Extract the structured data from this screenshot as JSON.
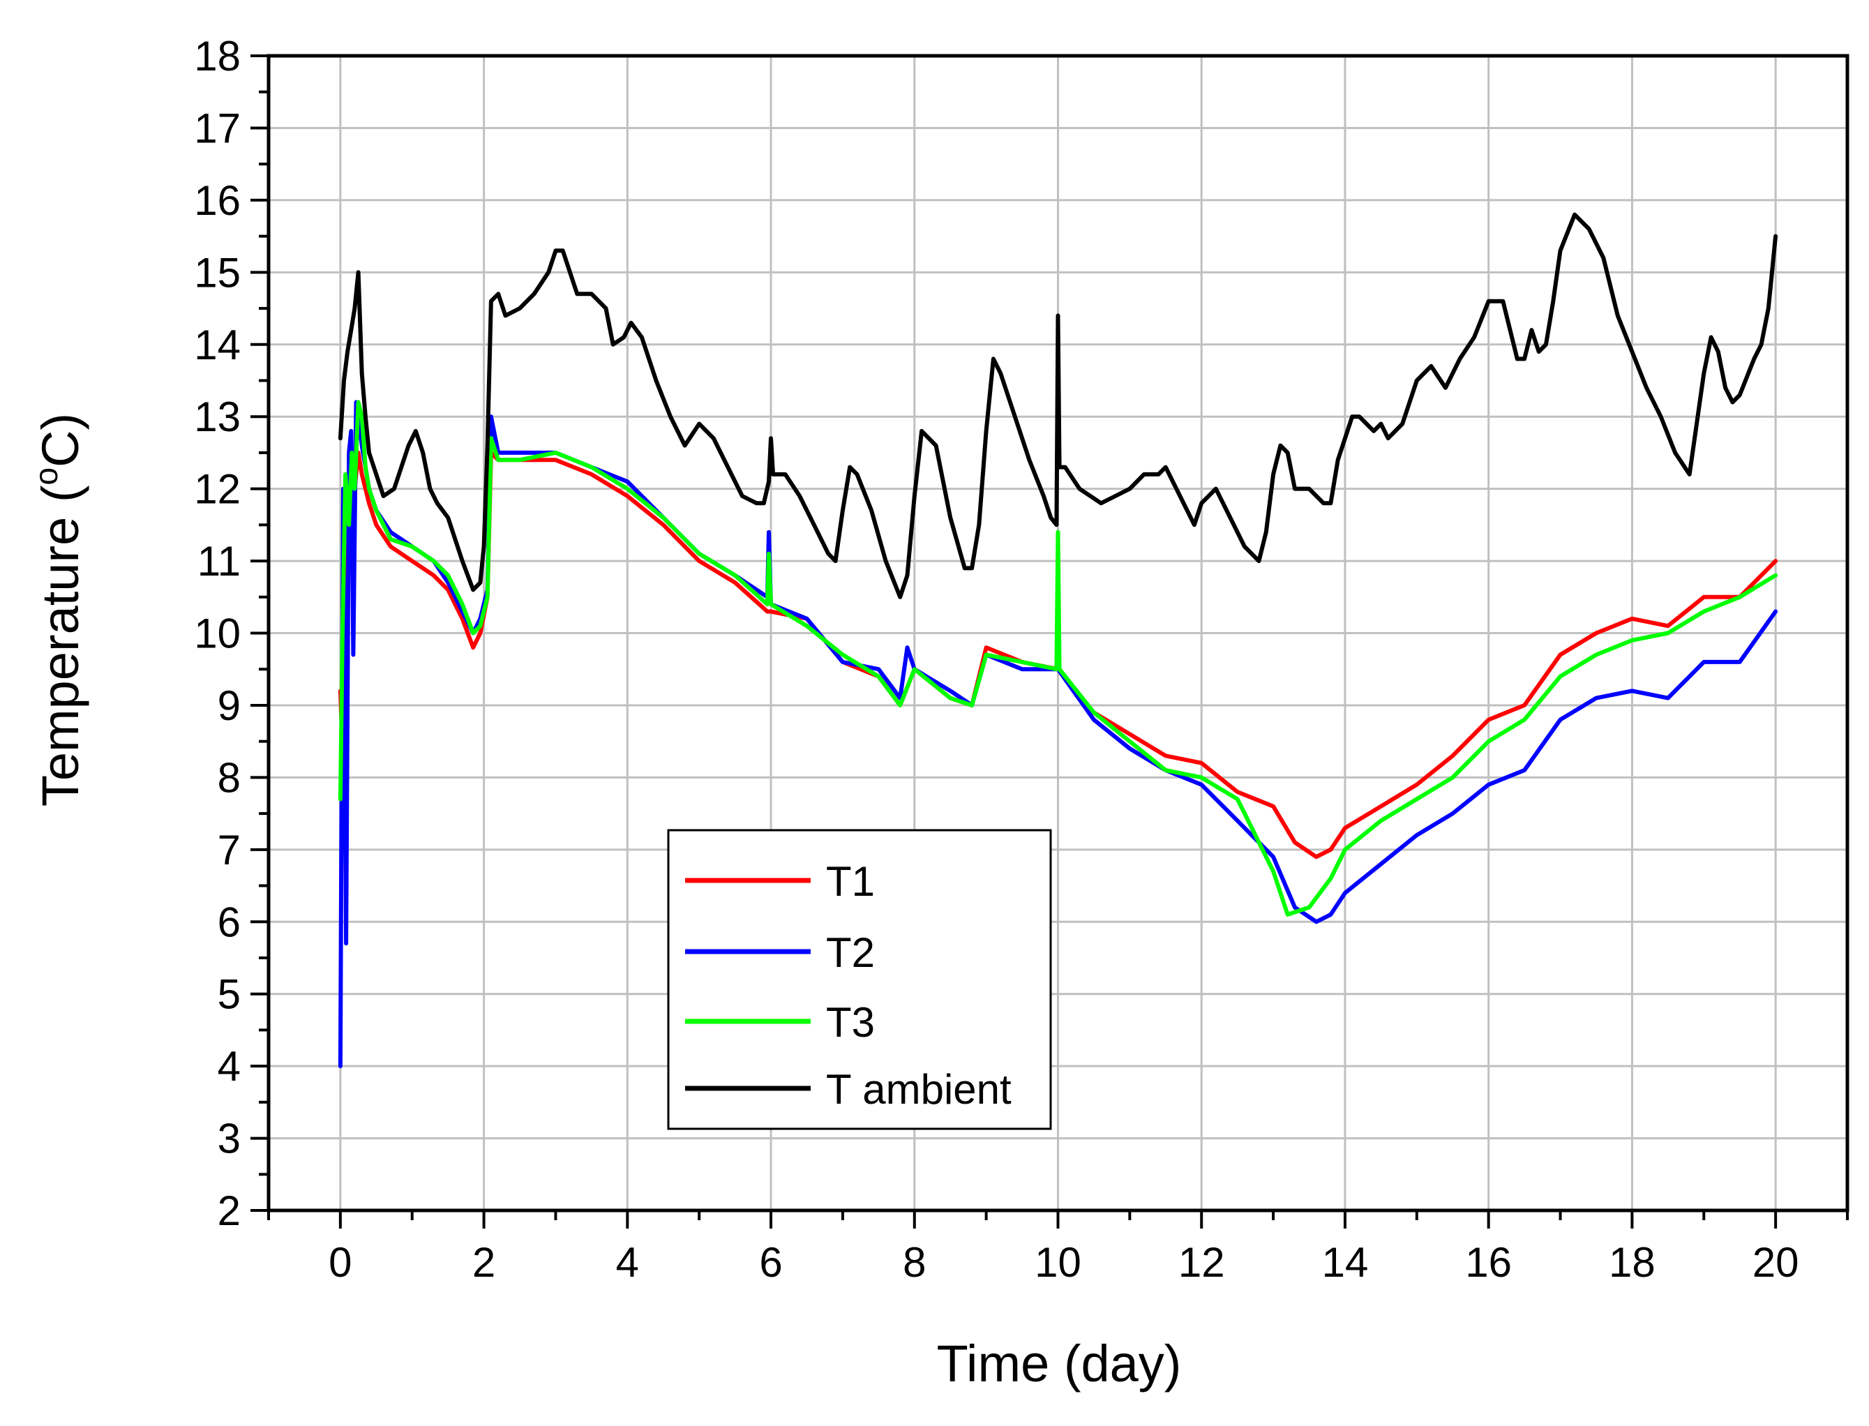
{
  "chart_data": {
    "type": "line",
    "title": "",
    "xlabel": "Time (day)",
    "ylabel_main": "Temperature (",
    "ylabel_sup": "o",
    "ylabel_end": "C)",
    "xlim": [
      -1,
      21
    ],
    "ylim": [
      2,
      18
    ],
    "xticks": [
      0,
      2,
      4,
      6,
      8,
      10,
      12,
      14,
      16,
      18,
      20
    ],
    "xtick_labels": [
      "0",
      "2",
      "4",
      "6",
      "8",
      "10",
      "12",
      "14",
      "16",
      "18",
      "20"
    ],
    "yticks": [
      2,
      3,
      4,
      5,
      6,
      7,
      8,
      9,
      10,
      11,
      12,
      13,
      14,
      15,
      16,
      17,
      18
    ],
    "ytick_labels": [
      "2",
      "3",
      "4",
      "5",
      "6",
      "7",
      "8",
      "9",
      "10",
      "11",
      "12",
      "13",
      "14",
      "15",
      "16",
      "17",
      "18"
    ],
    "grid": true,
    "legend_position": "lower-center",
    "series": [
      {
        "name": "T1",
        "color": "#ff0000",
        "x": [
          0,
          0.05,
          0.1,
          0.15,
          0.2,
          0.25,
          0.3,
          0.4,
          0.5,
          0.7,
          1.0,
          1.3,
          1.5,
          1.7,
          1.85,
          1.95,
          2.05,
          2.1,
          2.2,
          2.5,
          3.0,
          3.5,
          4.0,
          4.5,
          5.0,
          5.5,
          5.95,
          6.0,
          6.5,
          7.0,
          7.5,
          7.8,
          8.0,
          8.5,
          8.8,
          9.0,
          9.5,
          10.0,
          10.5,
          11.0,
          11.5,
          12.0,
          12.5,
          13.0,
          13.3,
          13.6,
          13.8,
          14.0,
          14.5,
          15.0,
          15.5,
          16.0,
          16.5,
          17.0,
          17.5,
          18.0,
          18.5,
          19.0,
          19.5,
          20.0
        ],
        "y": [
          9.2,
          7.8,
          11.0,
          12.2,
          12.0,
          12.5,
          12.2,
          11.8,
          11.5,
          11.2,
          11.0,
          10.8,
          10.6,
          10.2,
          9.8,
          10.0,
          10.5,
          12.5,
          12.4,
          12.4,
          12.4,
          12.2,
          11.9,
          11.5,
          11.0,
          10.7,
          10.3,
          10.3,
          10.2,
          9.6,
          9.4,
          9.0,
          9.5,
          9.1,
          9.0,
          9.8,
          9.6,
          9.5,
          8.9,
          8.6,
          8.3,
          8.2,
          7.8,
          7.6,
          7.1,
          6.9,
          7.0,
          7.3,
          7.6,
          7.9,
          8.3,
          8.8,
          9.0,
          9.7,
          10.0,
          10.2,
          10.1,
          10.5,
          10.5,
          11.0
        ]
      },
      {
        "name": "T2",
        "color": "#0000ff",
        "x": [
          0,
          0.02,
          0.04,
          0.08,
          0.12,
          0.15,
          0.18,
          0.22,
          0.25,
          0.3,
          0.4,
          0.5,
          0.7,
          1.0,
          1.3,
          1.5,
          1.7,
          1.85,
          1.95,
          2.05,
          2.1,
          2.2,
          2.5,
          3.0,
          3.5,
          4.0,
          4.5,
          5.0,
          5.5,
          5.95,
          5.97,
          6.0,
          6.5,
          7.0,
          7.5,
          7.8,
          7.9,
          8.0,
          8.5,
          8.8,
          9.0,
          9.5,
          10.0,
          10.5,
          11.0,
          11.5,
          12.0,
          12.5,
          13.0,
          13.3,
          13.6,
          13.8,
          14.0,
          14.5,
          15.0,
          15.5,
          16.0,
          16.5,
          17.0,
          17.5,
          18.0,
          18.5,
          19.0,
          19.5,
          20.0
        ],
        "y": [
          4.0,
          8.5,
          12.0,
          5.7,
          12.5,
          12.8,
          9.7,
          13.2,
          13.0,
          12.6,
          12.0,
          11.7,
          11.4,
          11.2,
          11.0,
          10.7,
          10.3,
          10.0,
          10.2,
          10.6,
          13.0,
          12.5,
          12.5,
          12.5,
          12.3,
          12.1,
          11.6,
          11.1,
          10.8,
          10.5,
          11.4,
          10.4,
          10.2,
          9.6,
          9.5,
          9.1,
          9.8,
          9.5,
          9.2,
          9.0,
          9.7,
          9.5,
          9.5,
          8.8,
          8.4,
          8.1,
          7.9,
          7.4,
          6.9,
          6.2,
          6.0,
          6.1,
          6.4,
          6.8,
          7.2,
          7.5,
          7.9,
          8.1,
          8.8,
          9.1,
          9.2,
          9.1,
          9.6,
          9.6,
          10.3
        ]
      },
      {
        "name": "T3",
        "color": "#00ff00",
        "x": [
          0,
          0.03,
          0.07,
          0.12,
          0.16,
          0.2,
          0.25,
          0.3,
          0.35,
          0.4,
          0.5,
          0.7,
          1.0,
          1.3,
          1.5,
          1.7,
          1.85,
          1.95,
          2.05,
          2.1,
          2.2,
          2.5,
          3.0,
          3.5,
          4.0,
          4.5,
          5.0,
          5.5,
          5.95,
          5.97,
          6.0,
          6.5,
          7.0,
          7.5,
          7.8,
          8.0,
          8.5,
          8.8,
          9.0,
          9.5,
          9.98,
          10.0,
          10.02,
          10.5,
          11.0,
          11.5,
          12.0,
          12.5,
          13.0,
          13.2,
          13.5,
          13.8,
          14.0,
          14.5,
          15.0,
          15.5,
          16.0,
          16.5,
          17.0,
          17.5,
          18.0,
          18.5,
          19.0,
          19.5,
          20.0
        ],
        "y": [
          7.7,
          10.0,
          12.2,
          11.5,
          12.5,
          12.0,
          13.2,
          13.0,
          12.3,
          12.0,
          11.7,
          11.3,
          11.2,
          11.0,
          10.8,
          10.4,
          10.0,
          10.1,
          10.5,
          12.7,
          12.4,
          12.4,
          12.5,
          12.3,
          12.0,
          11.6,
          11.1,
          10.8,
          10.4,
          11.1,
          10.4,
          10.1,
          9.7,
          9.4,
          9.0,
          9.5,
          9.1,
          9.0,
          9.7,
          9.6,
          9.5,
          11.4,
          9.5,
          8.9,
          8.5,
          8.1,
          8.0,
          7.7,
          6.7,
          6.1,
          6.2,
          6.6,
          7.0,
          7.4,
          7.7,
          8.0,
          8.5,
          8.8,
          9.4,
          9.7,
          9.9,
          10.0,
          10.3,
          10.5,
          10.8
        ]
      },
      {
        "name": "T ambient",
        "color": "#000000",
        "x": [
          0,
          0.05,
          0.1,
          0.15,
          0.2,
          0.25,
          0.3,
          0.35,
          0.4,
          0.5,
          0.6,
          0.75,
          0.85,
          0.95,
          1.05,
          1.15,
          1.25,
          1.35,
          1.5,
          1.7,
          1.85,
          1.95,
          2.0,
          2.05,
          2.1,
          2.2,
          2.3,
          2.5,
          2.7,
          2.9,
          3.0,
          3.1,
          3.2,
          3.3,
          3.5,
          3.7,
          3.8,
          3.95,
          4.05,
          4.2,
          4.4,
          4.6,
          4.8,
          5.0,
          5.2,
          5.4,
          5.6,
          5.8,
          5.9,
          5.97,
          6.0,
          6.03,
          6.2,
          6.4,
          6.6,
          6.8,
          6.9,
          7.0,
          7.1,
          7.2,
          7.4,
          7.6,
          7.8,
          7.9,
          8.0,
          8.1,
          8.3,
          8.5,
          8.7,
          8.8,
          8.9,
          9.0,
          9.1,
          9.2,
          9.4,
          9.6,
          9.8,
          9.9,
          9.98,
          10.0,
          10.02,
          10.1,
          10.3,
          10.6,
          10.8,
          11.0,
          11.2,
          11.4,
          11.5,
          11.7,
          11.9,
          12.0,
          12.2,
          12.4,
          12.6,
          12.8,
          12.9,
          13.0,
          13.1,
          13.2,
          13.3,
          13.5,
          13.7,
          13.8,
          13.9,
          14.0,
          14.1,
          14.2,
          14.4,
          14.5,
          14.6,
          14.8,
          15.0,
          15.2,
          15.4,
          15.6,
          15.8,
          16.0,
          16.2,
          16.4,
          16.5,
          16.6,
          16.7,
          16.8,
          16.9,
          17.0,
          17.2,
          17.4,
          17.6,
          17.8,
          18.0,
          18.2,
          18.4,
          18.6,
          18.8,
          19.0,
          19.1,
          19.2,
          19.3,
          19.4,
          19.5,
          19.7,
          19.8,
          19.9,
          20.0
        ],
        "y": [
          12.7,
          13.5,
          13.9,
          14.2,
          14.5,
          15.0,
          13.6,
          13.0,
          12.5,
          12.2,
          11.9,
          12.0,
          12.3,
          12.6,
          12.8,
          12.5,
          12.0,
          11.8,
          11.6,
          11.0,
          10.6,
          10.7,
          11.2,
          12.6,
          14.6,
          14.7,
          14.4,
          14.5,
          14.7,
          15.0,
          15.3,
          15.3,
          15.0,
          14.7,
          14.7,
          14.5,
          14.0,
          14.1,
          14.3,
          14.1,
          13.5,
          13.0,
          12.6,
          12.9,
          12.7,
          12.3,
          11.9,
          11.8,
          11.8,
          12.1,
          12.7,
          12.2,
          12.2,
          11.9,
          11.5,
          11.1,
          11.0,
          11.7,
          12.3,
          12.2,
          11.7,
          11.0,
          10.5,
          10.8,
          11.9,
          12.8,
          12.6,
          11.6,
          10.9,
          10.9,
          11.5,
          12.8,
          13.8,
          13.6,
          13.0,
          12.4,
          11.9,
          11.6,
          11.5,
          14.4,
          12.3,
          12.3,
          12.0,
          11.8,
          11.9,
          12.0,
          12.2,
          12.2,
          12.3,
          11.9,
          11.5,
          11.8,
          12.0,
          11.6,
          11.2,
          11.0,
          11.4,
          12.2,
          12.6,
          12.5,
          12.0,
          12.0,
          11.8,
          11.8,
          12.4,
          12.7,
          13.0,
          13.0,
          12.8,
          12.9,
          12.7,
          12.9,
          13.5,
          13.7,
          13.4,
          13.8,
          14.1,
          14.6,
          14.6,
          13.8,
          13.8,
          14.2,
          13.9,
          14.0,
          14.6,
          15.3,
          15.8,
          15.6,
          15.2,
          14.4,
          13.9,
          13.4,
          13.0,
          12.5,
          12.2,
          13.6,
          14.1,
          13.9,
          13.4,
          13.2,
          13.3,
          13.8,
          14.0,
          14.5,
          15.5
        ]
      }
    ]
  }
}
